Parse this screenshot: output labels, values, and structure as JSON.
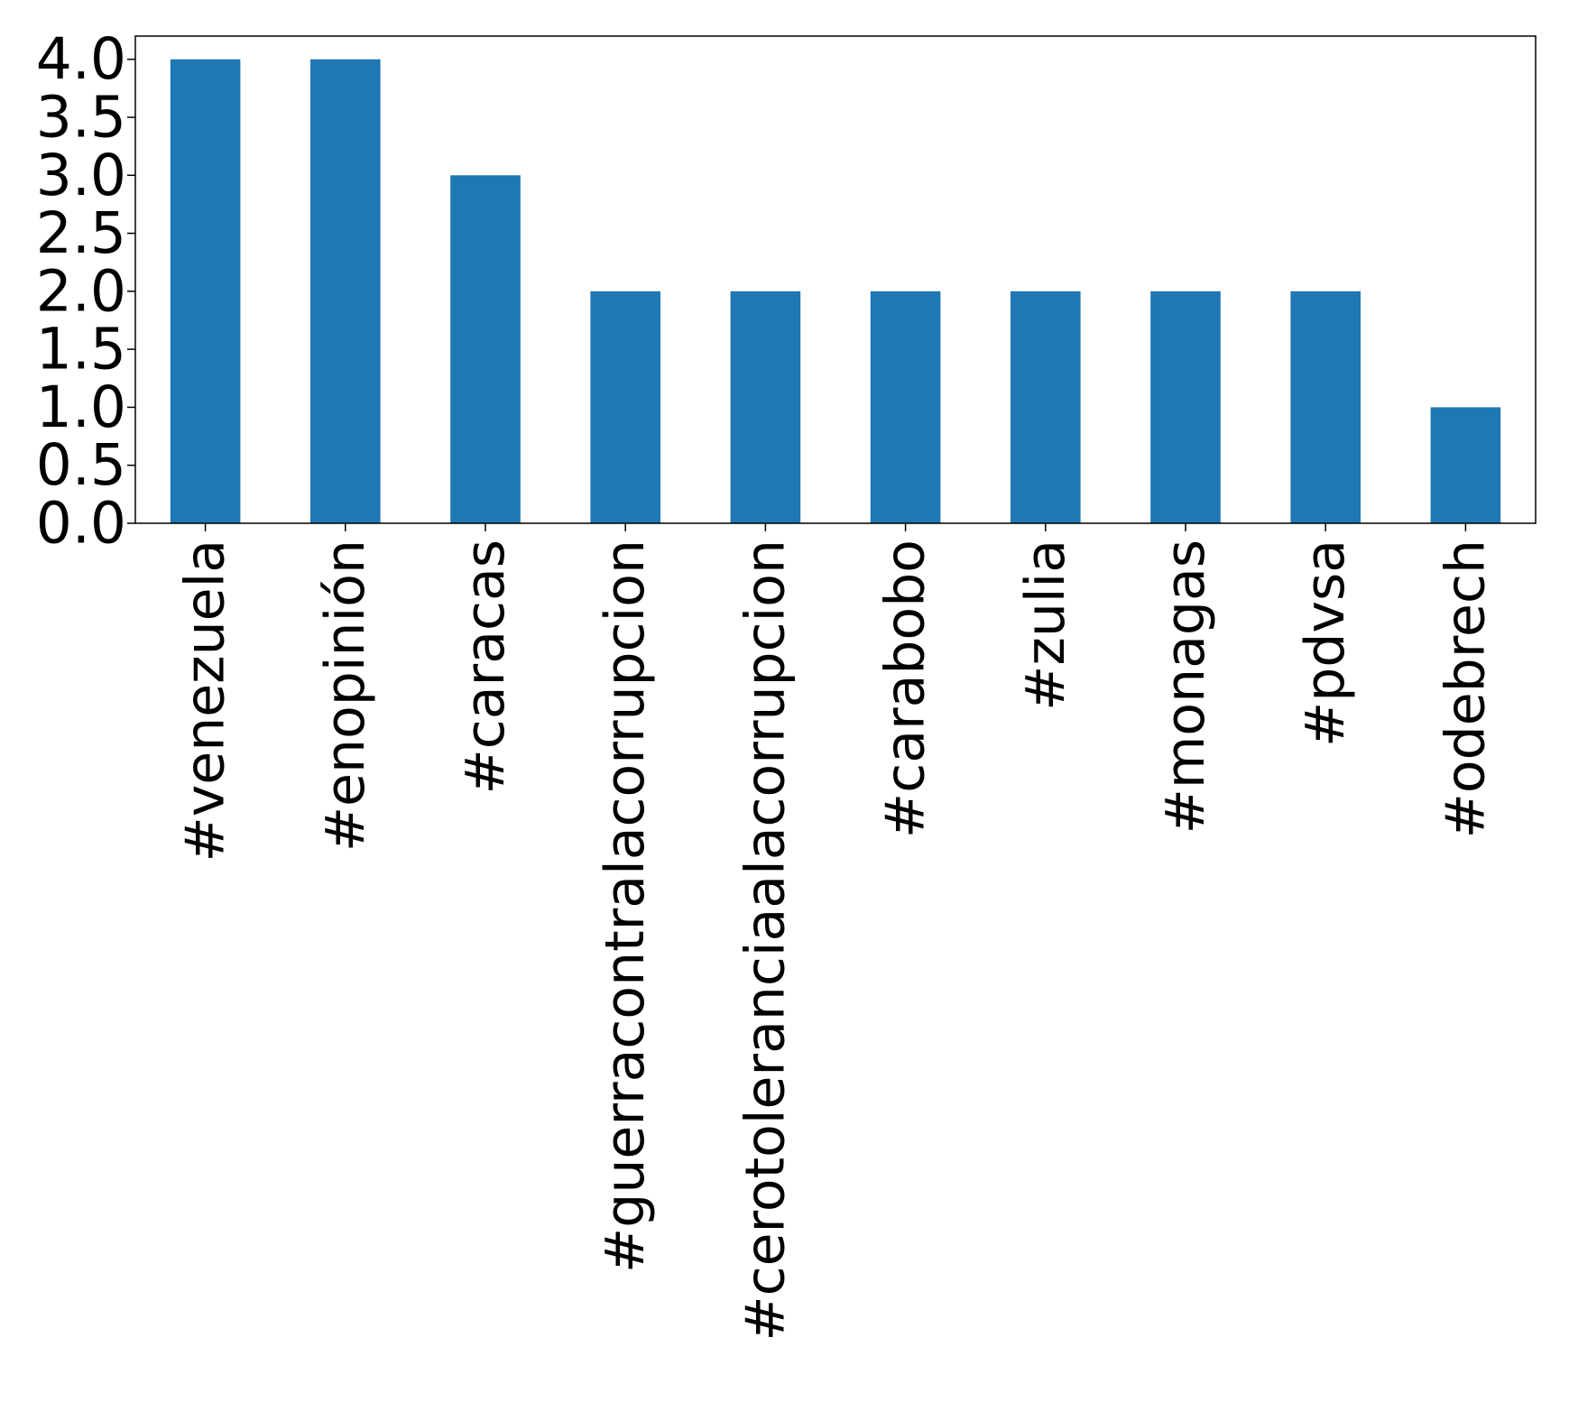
{
  "chart_data": {
    "type": "bar",
    "title": "",
    "xlabel": "",
    "ylabel": "",
    "categories": [
      "#venezuela",
      "#enopinión",
      "#caracas",
      "#guerracontralacorrupcion",
      "#cerotoleranciaalacorrupcion",
      "#carabobo",
      "#zulia",
      "#monagas",
      "#pdvsa",
      "#odebrech"
    ],
    "values": [
      4,
      4,
      3,
      2,
      2,
      2,
      2,
      2,
      2,
      1
    ],
    "ylim": [
      0,
      4.2
    ],
    "yticks": [
      "0.0",
      "0.5",
      "1.0",
      "1.5",
      "2.0",
      "2.5",
      "3.0",
      "3.5",
      "4.0"
    ],
    "bar_color": "#1f77b4",
    "grid": false,
    "legend": "none"
  }
}
